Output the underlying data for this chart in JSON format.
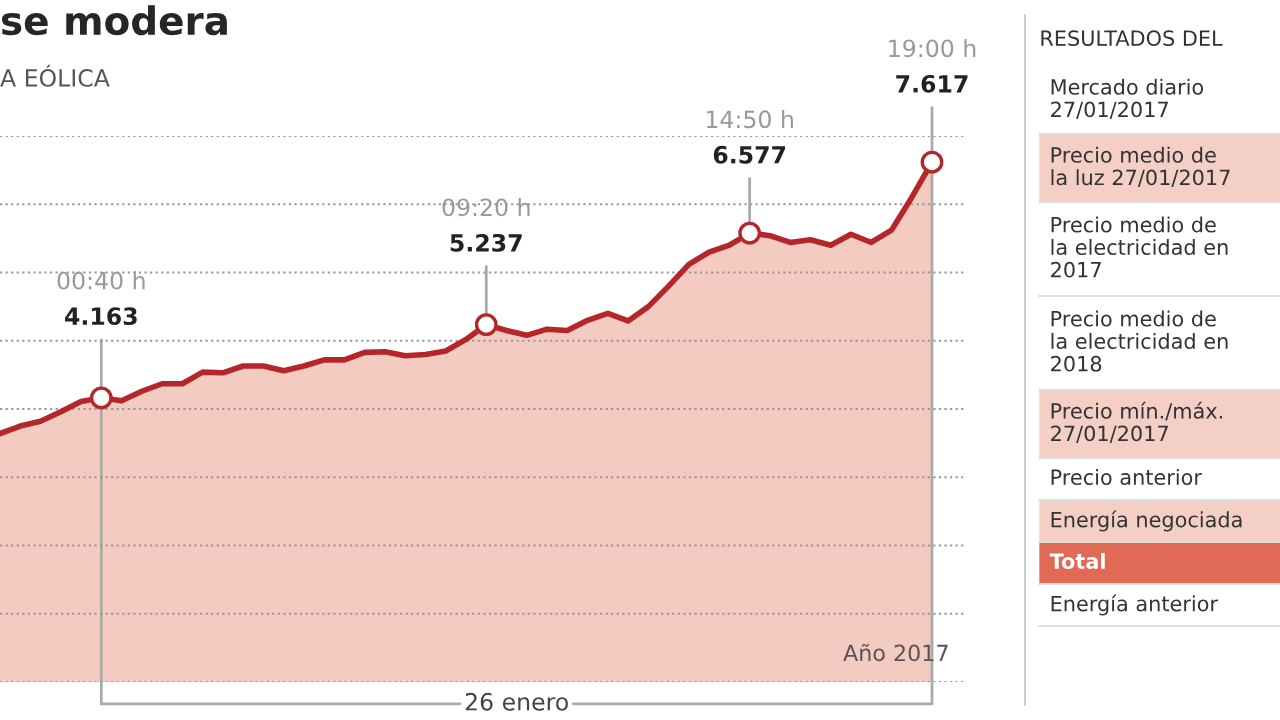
{
  "chart_data": [
    {
      "type": "area",
      "title": "se modera",
      "subtitle": "A EÓLICA",
      "categories": [
        null,
        null,
        null,
        null,
        null,
        null,
        null,
        null,
        null,
        null,
        null,
        null,
        null,
        null,
        null,
        null,
        null,
        null,
        null,
        null,
        null,
        null,
        null,
        null,
        null,
        null,
        null,
        null,
        null,
        null,
        null,
        null,
        null,
        null,
        null,
        null,
        null,
        null,
        null,
        null,
        null,
        null,
        null,
        null,
        null,
        null,
        null
      ],
      "series": [
        {
          "color": "#b5262b",
          "values": [
            3640,
            3750,
            3820,
            3960,
            4110,
            4163,
            4120,
            4260,
            4370,
            4370,
            4540,
            4530,
            4630,
            4630,
            4560,
            4630,
            4720,
            4720,
            4830,
            4840,
            4780,
            4800,
            4850,
            5020,
            5237,
            5150,
            5080,
            5170,
            5150,
            5300,
            5400,
            5290,
            5500,
            5800,
            6120,
            6300,
            6400,
            6577,
            6540,
            6440,
            6480,
            6400,
            6560,
            6440,
            6620,
            7100,
            7617
          ],
          "value_labels": [
            null,
            null,
            null,
            null,
            null,
            "4.163",
            null,
            null,
            null,
            null,
            null,
            null,
            null,
            null,
            null,
            null,
            null,
            null,
            null,
            null,
            null,
            null,
            null,
            null,
            "5.237",
            null,
            null,
            null,
            null,
            null,
            null,
            null,
            null,
            null,
            null,
            null,
            null,
            "6.577",
            null,
            null,
            null,
            null,
            null,
            null,
            null,
            null,
            "7.617"
          ]
        }
      ],
      "annotations": [
        "00:40 h",
        "09:20 h",
        "14:50 h",
        "19:00 h",
        "Año 2017",
        "26 enero"
      ],
      "ylim": [
        0,
        8000
      ],
      "yticks": [
        {
          "value": 0,
          "label": null
        },
        {
          "value": 1000,
          "label": null
        },
        {
          "value": 2000,
          "label": null
        },
        {
          "value": 3000,
          "label": null
        },
        {
          "value": 4000,
          "label": null
        },
        {
          "value": 5000,
          "label": null
        },
        {
          "value": 6000,
          "label": null
        },
        {
          "value": 7000,
          "label": null
        },
        {
          "value": 8000,
          "label": null
        }
      ],
      "grid": "y"
    },
    {
      "type": "other",
      "title": "RESULTADOS DEL",
      "annotations": [
        "Mercado diario\n27/01/2017",
        "Precio medio de\nla luz 27/01/2017",
        "Precio medio de\nla electricidad en\n2017",
        "Precio medio de\nla electricidad en\n2018",
        "Precio mín./máx.\n27/01/2017",
        "Precio anterior",
        "Energía negociada",
        "Total",
        "Energía anterior"
      ],
      "colors": [
        "#ffffff",
        "#f4cfc5",
        "#ffffff",
        "#ffffff",
        "#f4cfc5",
        "#ffffff",
        "#f4cfc5",
        "#e06a55",
        "#ffffff"
      ]
    }
  ]
}
